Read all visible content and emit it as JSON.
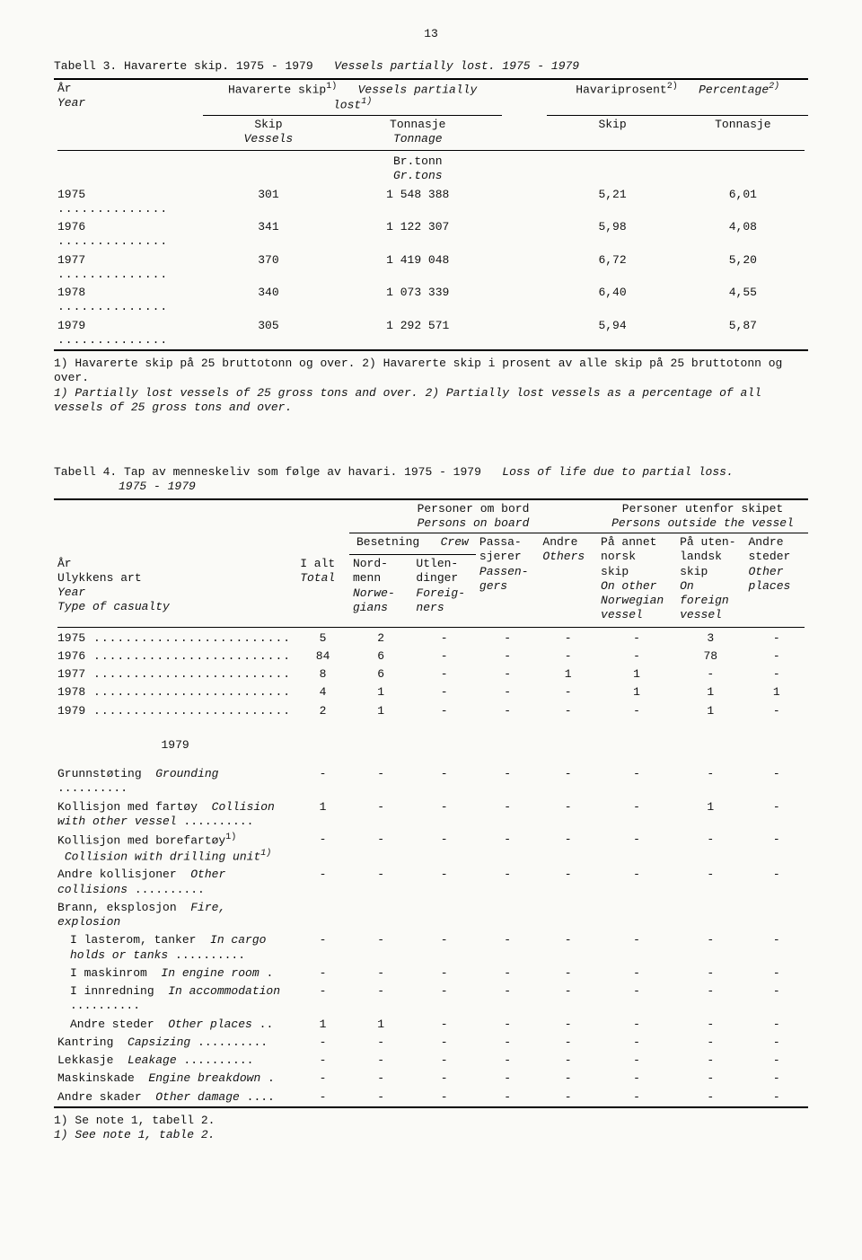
{
  "page_number": "13",
  "table3": {
    "caption_no": "Tabell 3.  Havarerte skip.  1975 - 1979",
    "caption_en": "Vessels partially lost.  1975 - 1979",
    "head": {
      "col1_no": "År",
      "col1_en": "Year",
      "grp1_no": "Havarerte skip",
      "grp1_en": "Vessels partially lost",
      "grp1_sup": "1)",
      "grp2_no": "Havariprosent",
      "grp2_en": "Percentage",
      "grp2_sup": "2)",
      "sub_skip_no": "Skip",
      "sub_skip_en": "Vessels",
      "sub_tonn_no": "Tonnasje",
      "sub_tonn_en": "Tonnage",
      "unit_no": "Br.tonn",
      "unit_en": "Gr.tons",
      "sub_skip2": "Skip",
      "sub_tonn2": "Tonnasje"
    },
    "rows": [
      {
        "year": "1975",
        "skip": "301",
        "tonn": "1 548 388",
        "pct_skip": "5,21",
        "pct_tonn": "6,01"
      },
      {
        "year": "1976",
        "skip": "341",
        "tonn": "1 122 307",
        "pct_skip": "5,98",
        "pct_tonn": "4,08"
      },
      {
        "year": "1977",
        "skip": "370",
        "tonn": "1 419 048",
        "pct_skip": "6,72",
        "pct_tonn": "5,20"
      },
      {
        "year": "1978",
        "skip": "340",
        "tonn": "1 073 339",
        "pct_skip": "6,40",
        "pct_tonn": "4,55"
      },
      {
        "year": "1979",
        "skip": "305",
        "tonn": "1 292 571",
        "pct_skip": "5,94",
        "pct_tonn": "5,87"
      }
    ],
    "foot_no": "1) Havarerte skip på 25 bruttotonn og over.  2) Havarerte skip i prosent av alle skip på 25 bruttotonn og over.",
    "foot_en": "1) Partially lost vessels of 25 gross tons and over.  2) Partially lost vessels as a percentage of all vessels of 25 gross tons and over."
  },
  "table4": {
    "caption_no": "Tabell 4.  Tap av menneskeliv som følge av havari.  1975 - 1979",
    "caption_en": "Loss of life due to partial loss.",
    "caption_range": "1975 - 1979",
    "head": {
      "grp_persons_no": "Personer om bord",
      "grp_persons_en": "Persons on board",
      "grp_outside_no": "Personer utenfor skipet",
      "grp_outside_en": "Persons outside the vessel",
      "col_year_no": "År",
      "col_ulykke_no": "Ulykkens art",
      "col_year_en": "Year",
      "col_ulykke_en": "Type of casualty",
      "col_total_no": "I alt",
      "col_total_en": "Total",
      "crew_no": "Besetning",
      "crew_en": "Crew",
      "nordmenn_no": "Nord-",
      "nordmenn_no2": "menn",
      "nordmenn_en": "Norwe-",
      "nordmenn_en2": "gians",
      "utlend_no": "Utlen-",
      "utlend_no2": "dinger",
      "utlend_en": "Foreig-",
      "utlend_en2": "ners",
      "pass_no": "Passa-",
      "pass_no2": "sjerer",
      "pass_en": "Passen-",
      "pass_en2": "gers",
      "andre_no": "Andre",
      "andre_en": "Others",
      "annet_no": "På annet",
      "annet_no2": "norsk",
      "annet_no3": "skip",
      "annet_en": "On other",
      "annet_en2": "Norwegian",
      "annet_en3": "vessel",
      "utenl_no": "På uten-",
      "utenl_no2": "landsk",
      "utenl_no3": "skip",
      "utenl_en": "On",
      "utenl_en2": "foreign",
      "utenl_en3": "vessel",
      "steder_no": "Andre",
      "steder_no2": "steder",
      "steder_en": "Other",
      "steder_en2": "places"
    },
    "year_rows": [
      {
        "y": "1975",
        "c": [
          "5",
          "2",
          "-",
          "-",
          "-",
          "-",
          "3",
          "-"
        ]
      },
      {
        "y": "1976",
        "c": [
          "84",
          "6",
          "-",
          "-",
          "-",
          "-",
          "78",
          "-"
        ]
      },
      {
        "y": "1977",
        "c": [
          "8",
          "6",
          "-",
          "-",
          "1",
          "1",
          "-",
          "-"
        ]
      },
      {
        "y": "1978",
        "c": [
          "4",
          "1",
          "-",
          "-",
          "-",
          "1",
          "1",
          "1"
        ]
      },
      {
        "y": "1979",
        "c": [
          "2",
          "1",
          "-",
          "-",
          "-",
          "-",
          "1",
          "-"
        ]
      }
    ],
    "section_year": "1979",
    "casualty_rows": [
      {
        "no": "Grunnstøting",
        "en": "Grounding",
        "dots": 1,
        "c": [
          "-",
          "-",
          "-",
          "-",
          "-",
          "-",
          "-",
          "-"
        ]
      },
      {
        "no": "Kollisjon med fartøy",
        "en": "Collision with other vessel",
        "multiline": 1,
        "c": [
          "1",
          "-",
          "-",
          "-",
          "-",
          "-",
          "1",
          "-"
        ],
        "dots": 1
      },
      {
        "no": "Kollisjon med borefartøy",
        "en": "Collision with drilling unit",
        "sup": "1)",
        "multiline": 1,
        "c": [
          "-",
          "-",
          "-",
          "-",
          "-",
          "-",
          "-",
          "-"
        ]
      },
      {
        "no": "Andre kollisjoner",
        "en": "Other collisions",
        "multiline": 1,
        "c": [
          "-",
          "-",
          "-",
          "-",
          "-",
          "-",
          "-",
          "-"
        ],
        "dots": 1
      },
      {
        "no": "Brann, eksplosjon",
        "en": "Fire, explosion",
        "multiline": 1,
        "header_only": 1
      },
      {
        "no": "I lasterom, tanker",
        "en": "In cargo holds or tanks",
        "indent": 1,
        "multiline": 1,
        "c": [
          "-",
          "-",
          "-",
          "-",
          "-",
          "-",
          "-",
          "-"
        ],
        "dots": 1
      },
      {
        "no": "I maskinrom",
        "en": "In engine room",
        "indent": 1,
        "c": [
          "-",
          "-",
          "-",
          "-",
          "-",
          "-",
          "-",
          "-"
        ],
        "inlinedot": 1
      },
      {
        "no": "I innredning",
        "en": "In accommodation",
        "indent": 1,
        "multiline": 1,
        "c": [
          "-",
          "-",
          "-",
          "-",
          "-",
          "-",
          "-",
          "-"
        ],
        "dots": 1
      },
      {
        "no": "Andre steder",
        "en": "Other places",
        "indent": 1,
        "c": [
          "1",
          "1",
          "-",
          "-",
          "-",
          "-",
          "-",
          "-"
        ],
        "inlinedot": 2
      },
      {
        "no": "Kantring",
        "en": "Capsizing",
        "c": [
          "-",
          "-",
          "-",
          "-",
          "-",
          "-",
          "-",
          "-"
        ],
        "dots": 1
      },
      {
        "no": "Lekkasje",
        "en": "Leakage",
        "c": [
          "-",
          "-",
          "-",
          "-",
          "-",
          "-",
          "-",
          "-"
        ],
        "dots": 1
      },
      {
        "no": "Maskinskade",
        "en": "Engine breakdown",
        "c": [
          "-",
          "-",
          "-",
          "-",
          "-",
          "-",
          "-",
          "-"
        ],
        "inlinedot": 1
      },
      {
        "no": "Andre skader",
        "en": "Other damage",
        "c": [
          "-",
          "-",
          "-",
          "-",
          "-",
          "-",
          "-",
          "-"
        ],
        "inlinedot": 3
      }
    ],
    "foot_no": "1) Se note 1, tabell 2.",
    "foot_en": "1) See note 1, table 2."
  }
}
